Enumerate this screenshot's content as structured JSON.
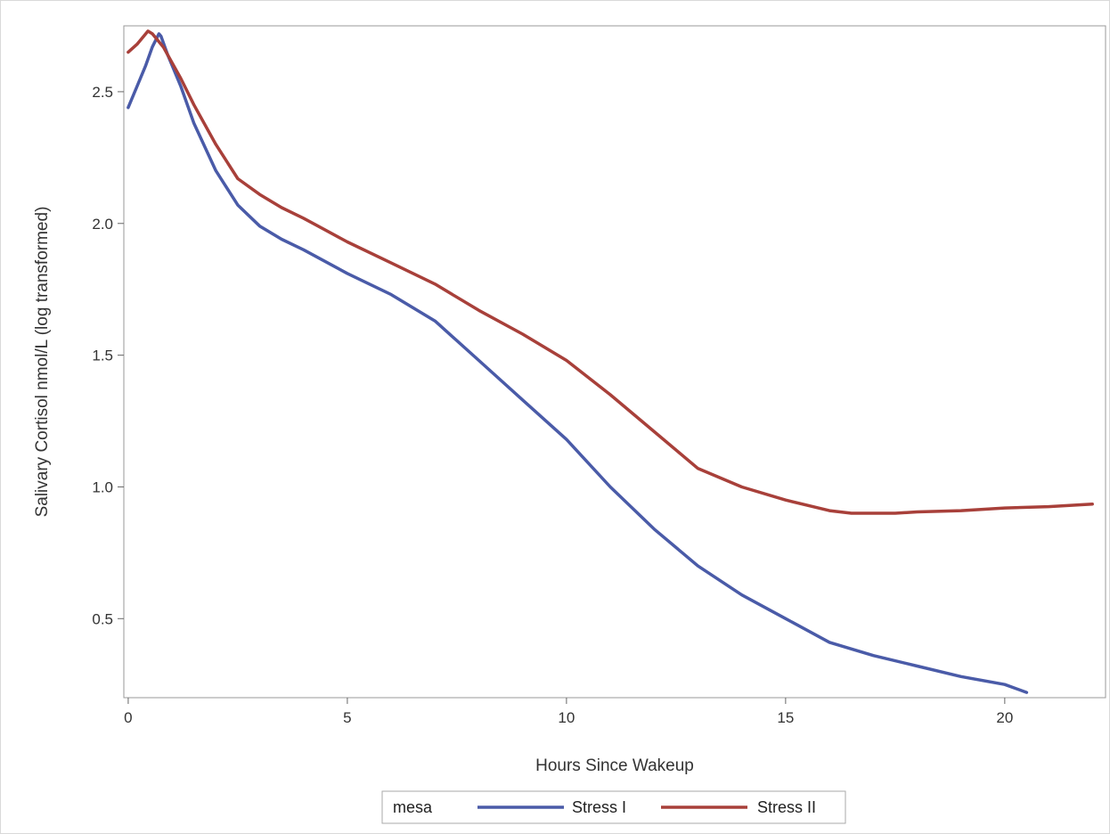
{
  "chart_data": {
    "type": "line",
    "xlabel": "Hours Since Wakeup",
    "ylabel": "Salivary Cortisol nmol/L (log transformed)",
    "xlim": [
      -0.1,
      22.3
    ],
    "ylim": [
      0.2,
      2.75
    ],
    "xticks": [
      0,
      5,
      10,
      15,
      20
    ],
    "yticks": [
      0.5,
      1.0,
      1.5,
      2.0,
      2.5
    ],
    "xtick_labels": [
      "0",
      "5",
      "10",
      "15",
      "20"
    ],
    "ytick_labels": [
      "0.5",
      "1.0",
      "1.5",
      "2.0",
      "2.5"
    ],
    "grid": false,
    "legend": {
      "title": "mesa",
      "position": "bottom"
    },
    "series": [
      {
        "name": "Stress I",
        "color": "#4a5ba8",
        "x": [
          0,
          0.2,
          0.4,
          0.55,
          0.7,
          0.75,
          0.9,
          1.2,
          1.5,
          2.0,
          2.5,
          3.0,
          3.5,
          4.0,
          5.0,
          6.0,
          7.0,
          8.0,
          9.0,
          10.0,
          11.0,
          12.0,
          13.0,
          14.0,
          15.0,
          16.0,
          17.0,
          18.0,
          19.0,
          20.0,
          20.5
        ],
        "y": [
          2.44,
          2.52,
          2.6,
          2.67,
          2.72,
          2.71,
          2.64,
          2.52,
          2.38,
          2.2,
          2.07,
          1.99,
          1.94,
          1.9,
          1.81,
          1.73,
          1.63,
          1.48,
          1.33,
          1.18,
          1.0,
          0.84,
          0.7,
          0.59,
          0.5,
          0.41,
          0.36,
          0.32,
          0.28,
          0.25,
          0.22
        ]
      },
      {
        "name": "Stress II",
        "color": "#a8403a",
        "x": [
          0,
          0.2,
          0.45,
          0.55,
          0.8,
          1.2,
          1.5,
          2.0,
          2.5,
          3.0,
          3.5,
          4.0,
          5.0,
          6.0,
          7.0,
          8.0,
          9.0,
          10.0,
          11.0,
          12.0,
          13.0,
          14.0,
          15.0,
          16.0,
          16.5,
          17.5,
          18.0,
          19.0,
          20.0,
          21.0,
          22.0
        ],
        "y": [
          2.65,
          2.68,
          2.73,
          2.72,
          2.67,
          2.55,
          2.45,
          2.3,
          2.17,
          2.11,
          2.06,
          2.02,
          1.93,
          1.85,
          1.77,
          1.67,
          1.58,
          1.48,
          1.35,
          1.21,
          1.07,
          1.0,
          0.95,
          0.91,
          0.9,
          0.9,
          0.905,
          0.91,
          0.92,
          0.925,
          0.935
        ]
      }
    ]
  }
}
